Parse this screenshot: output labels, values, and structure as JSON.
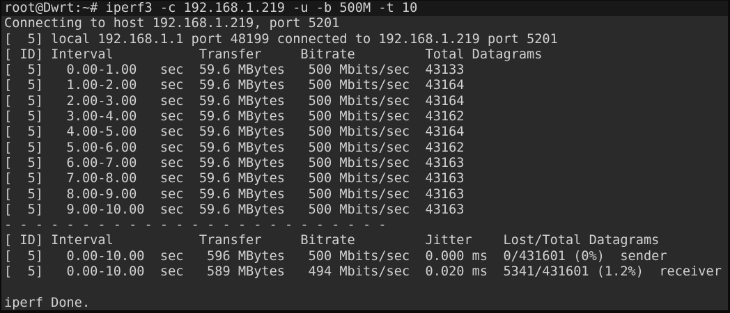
{
  "terminal": {
    "colors": {
      "background": "#2a2a2b",
      "frame": "#0b0b0b",
      "text": "#d2d1d1",
      "command_line_bg": "#181818"
    },
    "prompt": "root@Dwrt:~# ",
    "command": "iperf3 -c 192.168.1.219 -u -b 500M -t 10",
    "connecting_line": "Connecting to host 192.168.1.219, port 5201",
    "local_line": "[  5] local 192.168.1.1 port 48199 connected to 192.168.1.219 port 5201",
    "separator": "- - - - - - - - - - - - - - - - - - - - - - - - -",
    "done_line": "iperf Done.",
    "interval_table": {
      "headers": [
        "ID",
        "Interval",
        "Transfer",
        "Bitrate",
        "Total Datagrams"
      ],
      "rows": [
        {
          "id": 5,
          "interval": "0.00-1.00",
          "unit": "sec",
          "transfer": "59.6",
          "transfer_unit": "MBytes",
          "bitrate": "500",
          "bitrate_unit": "Mbits/sec",
          "datagrams": "43133"
        },
        {
          "id": 5,
          "interval": "1.00-2.00",
          "unit": "sec",
          "transfer": "59.6",
          "transfer_unit": "MBytes",
          "bitrate": "500",
          "bitrate_unit": "Mbits/sec",
          "datagrams": "43164"
        },
        {
          "id": 5,
          "interval": "2.00-3.00",
          "unit": "sec",
          "transfer": "59.6",
          "transfer_unit": "MBytes",
          "bitrate": "500",
          "bitrate_unit": "Mbits/sec",
          "datagrams": "43164"
        },
        {
          "id": 5,
          "interval": "3.00-4.00",
          "unit": "sec",
          "transfer": "59.6",
          "transfer_unit": "MBytes",
          "bitrate": "500",
          "bitrate_unit": "Mbits/sec",
          "datagrams": "43162"
        },
        {
          "id": 5,
          "interval": "4.00-5.00",
          "unit": "sec",
          "transfer": "59.6",
          "transfer_unit": "MBytes",
          "bitrate": "500",
          "bitrate_unit": "Mbits/sec",
          "datagrams": "43164"
        },
        {
          "id": 5,
          "interval": "5.00-6.00",
          "unit": "sec",
          "transfer": "59.6",
          "transfer_unit": "MBytes",
          "bitrate": "500",
          "bitrate_unit": "Mbits/sec",
          "datagrams": "43162"
        },
        {
          "id": 5,
          "interval": "6.00-7.00",
          "unit": "sec",
          "transfer": "59.6",
          "transfer_unit": "MBytes",
          "bitrate": "500",
          "bitrate_unit": "Mbits/sec",
          "datagrams": "43163"
        },
        {
          "id": 5,
          "interval": "7.00-8.00",
          "unit": "sec",
          "transfer": "59.6",
          "transfer_unit": "MBytes",
          "bitrate": "500",
          "bitrate_unit": "Mbits/sec",
          "datagrams": "43163"
        },
        {
          "id": 5,
          "interval": "8.00-9.00",
          "unit": "sec",
          "transfer": "59.6",
          "transfer_unit": "MBytes",
          "bitrate": "500",
          "bitrate_unit": "Mbits/sec",
          "datagrams": "43163"
        },
        {
          "id": 5,
          "interval": "9.00-10.00",
          "unit": "sec",
          "transfer": "59.6",
          "transfer_unit": "MBytes",
          "bitrate": "500",
          "bitrate_unit": "Mbits/sec",
          "datagrams": "43163"
        }
      ]
    },
    "summary_table": {
      "headers": [
        "ID",
        "Interval",
        "Transfer",
        "Bitrate",
        "Jitter",
        "Lost/Total Datagrams"
      ],
      "rows": [
        {
          "id": 5,
          "interval": "0.00-10.00",
          "unit": "sec",
          "transfer": "596",
          "transfer_unit": "MBytes",
          "bitrate": "500",
          "bitrate_unit": "Mbits/sec",
          "jitter": "0.000",
          "jitter_unit": "ms",
          "lost_total": "0/431601 (0%)",
          "role": "sender"
        },
        {
          "id": 5,
          "interval": "0.00-10.00",
          "unit": "sec",
          "transfer": "589",
          "transfer_unit": "MBytes",
          "bitrate": "494",
          "bitrate_unit": "Mbits/sec",
          "jitter": "0.020",
          "jitter_unit": "ms",
          "lost_total": "5341/431601 (1.2%)",
          "role": "receiver"
        }
      ]
    }
  }
}
